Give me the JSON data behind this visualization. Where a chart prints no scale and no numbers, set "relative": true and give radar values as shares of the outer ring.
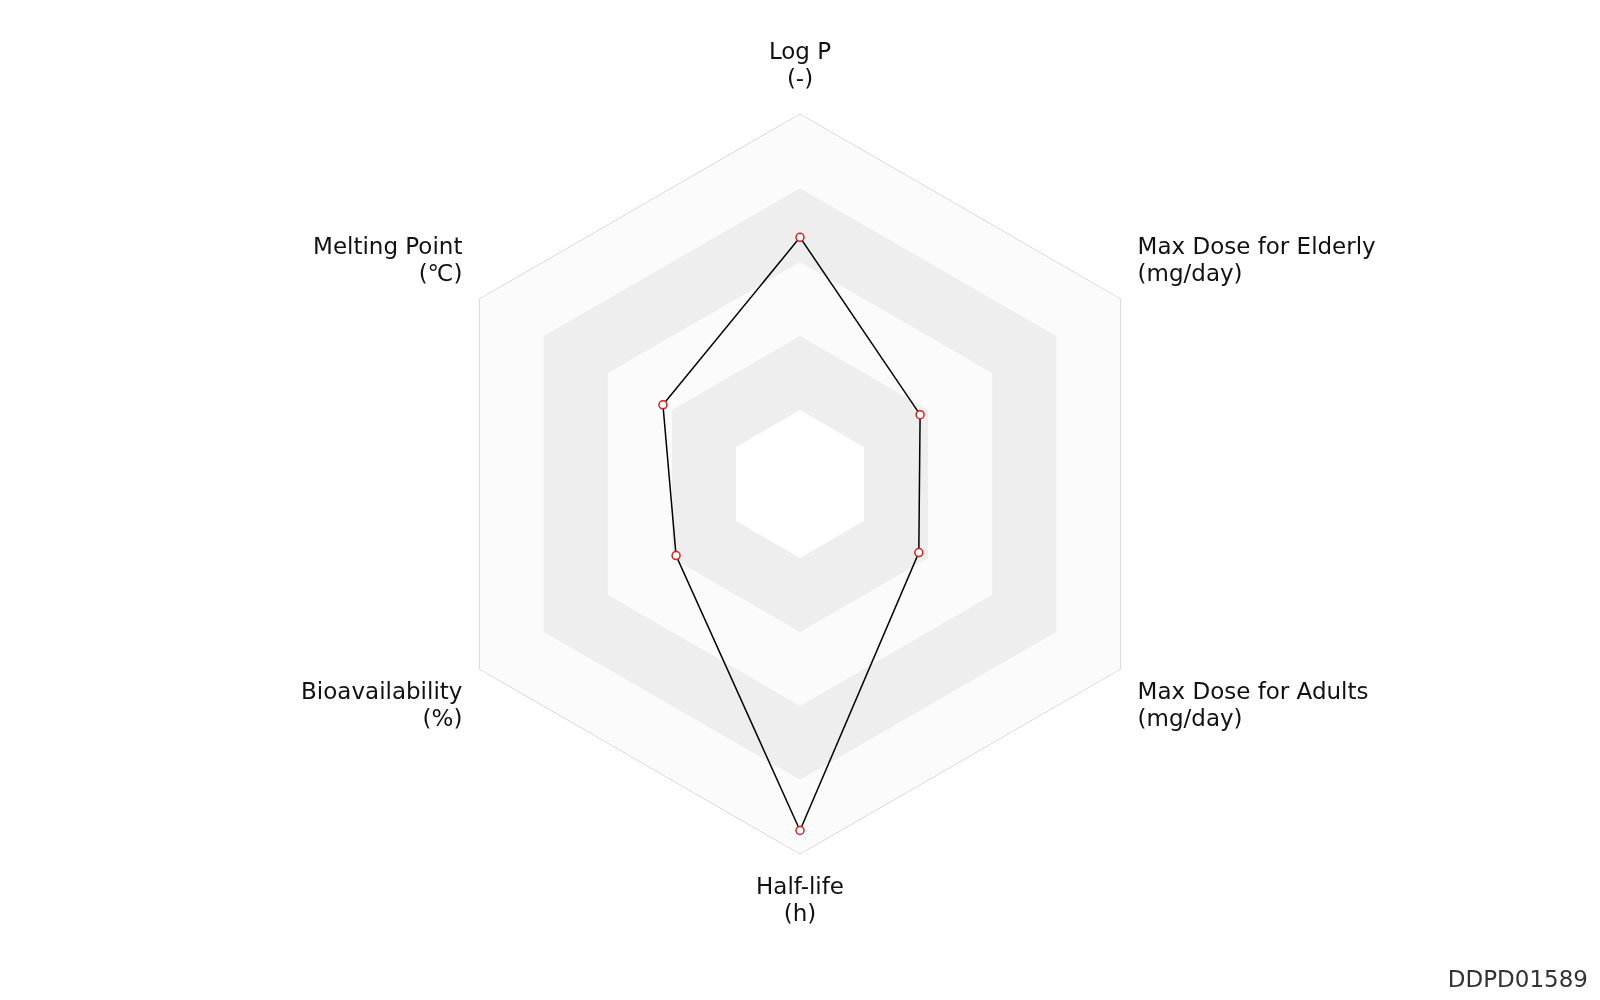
{
  "chart_data": {
    "type": "radar",
    "relative": true,
    "categories": [
      "Log P\n(-)",
      "Max Dose for Elderly\n(mg/day)",
      "Max Dose for Adults\n(mg/day)",
      "Half-life\n(h)",
      "Bioavailability\n(%)",
      "Melting Point\n(℃)"
    ],
    "series": [
      {
        "color": "#000000",
        "values": [
          0.667,
          0.375,
          0.371,
          0.937,
          0.387,
          0.428
        ]
      }
    ],
    "marker": "circle",
    "legend": false,
    "grid": true,
    "annotations": [
      "DDPD01589"
    ]
  }
}
